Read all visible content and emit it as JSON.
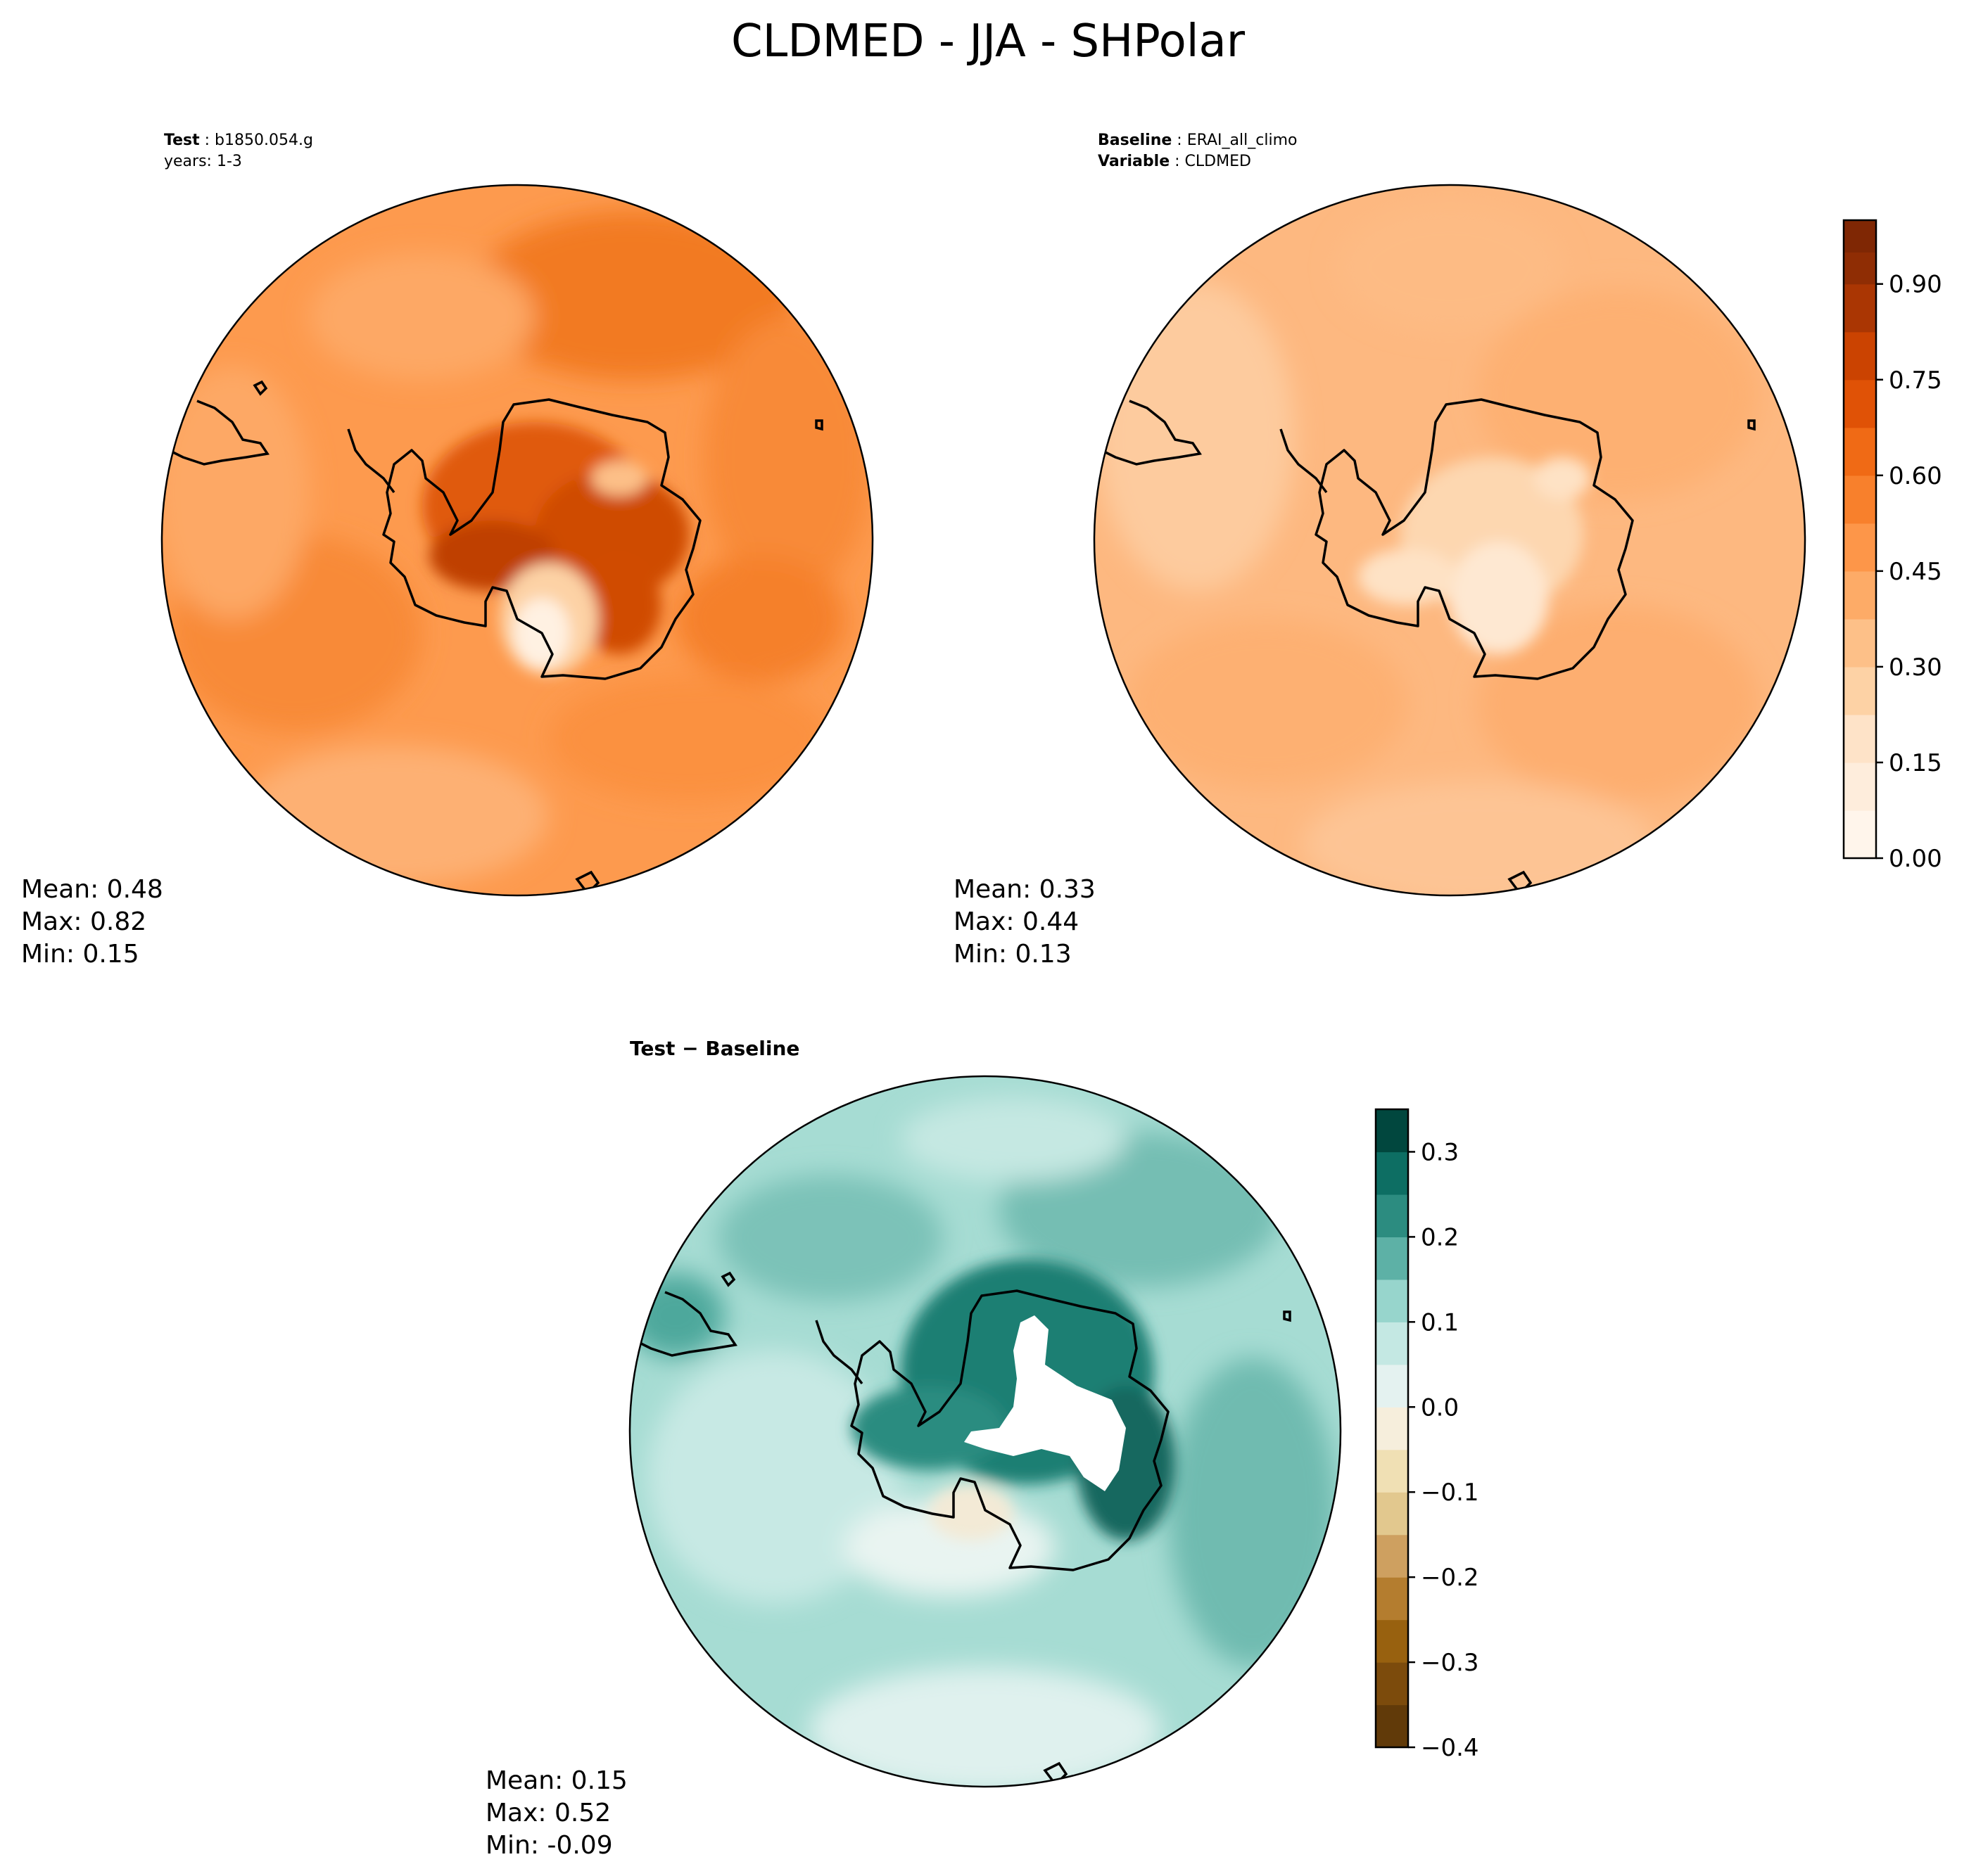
{
  "figure_title": "CLDMED - JJA - SHPolar",
  "panels": {
    "test": {
      "label_key": "Test",
      "label_value": "b1850.054.g",
      "subtitle": "years: 1-3",
      "stats": {
        "mean": "Mean:  0.48",
        "max": "Max:  0.82",
        "min": "Min:  0.15"
      }
    },
    "baseline": {
      "label_key": "Baseline",
      "label_value": "ERAI_all_climo",
      "variable_key": "Variable",
      "variable_value": "CLDMED",
      "stats": {
        "mean": "Mean:  0.33",
        "max": "Max:  0.44",
        "min": "Min:  0.13"
      }
    },
    "diff": {
      "title_a": "Test",
      "title_b": "Baseline",
      "stats": {
        "mean": "Mean:  0.15",
        "max": "Max:  0.52",
        "min": "Min: -0.09"
      }
    }
  },
  "colors": {
    "oranges": [
      "#fff5eb",
      "#feeddc",
      "#fee3c8",
      "#fdd2a5",
      "#fdc088",
      "#fdab67",
      "#fd9649",
      "#f8802c",
      "#f06a15",
      "#e05206",
      "#cb4301",
      "#aa3603",
      "#8f2d04",
      "#7f2704"
    ],
    "diverging": [
      "#613a09",
      "#7c4b0c",
      "#98610f",
      "#b47d2f",
      "#cea060",
      "#e2c88e",
      "#f0e0b4",
      "#f6eedc",
      "#e4f2f0",
      "#c4e8e3",
      "#97d5cc",
      "#5db1a6",
      "#2c8c80",
      "#0d6e63",
      "#01473e"
    ],
    "land_line": "#000000"
  },
  "chart_data": [
    {
      "type": "heatmap",
      "projection": "south-polar-stereographic",
      "panel": "test",
      "variable": "CLDMED",
      "season": "JJA",
      "region": "SHPolar",
      "mean": 0.48,
      "max": 0.82,
      "min": 0.15,
      "color_range": [
        0.0,
        1.0
      ],
      "colormap": "Oranges"
    },
    {
      "type": "heatmap",
      "projection": "south-polar-stereographic",
      "panel": "baseline",
      "variable": "CLDMED",
      "mean": 0.33,
      "max": 0.44,
      "min": 0.13,
      "color_range": [
        0.0,
        1.0
      ],
      "colormap": "Oranges",
      "colorbar": {
        "levels": [
          0.0,
          0.075,
          0.15,
          0.225,
          0.3,
          0.375,
          0.45,
          0.525,
          0.6,
          0.675,
          0.75,
          0.825,
          0.9,
          0.95,
          1.0
        ],
        "ticks": [
          0.0,
          0.15,
          0.3,
          0.45,
          0.6,
          0.75,
          0.9
        ],
        "tick_labels": [
          "0.00",
          "0.15",
          "0.30",
          "0.45",
          "0.60",
          "0.75",
          "0.90"
        ]
      }
    },
    {
      "type": "heatmap",
      "projection": "south-polar-stereographic",
      "panel": "difference",
      "title": "Test − Baseline",
      "mean": 0.15,
      "max": 0.52,
      "min": -0.09,
      "color_range": [
        -0.4,
        0.35
      ],
      "colormap": "BrBG",
      "colorbar": {
        "levels": [
          -0.4,
          -0.35,
          -0.3,
          -0.25,
          -0.2,
          -0.15,
          -0.1,
          -0.05,
          0.0,
          0.05,
          0.1,
          0.15,
          0.2,
          0.25,
          0.3,
          0.35
        ],
        "ticks": [
          -0.4,
          -0.3,
          -0.2,
          -0.1,
          0.0,
          0.1,
          0.2,
          0.3
        ],
        "tick_labels": [
          "−0.4",
          "−0.3",
          "−0.2",
          "−0.1",
          "0.0",
          "0.1",
          "0.2",
          "0.3"
        ]
      }
    }
  ]
}
